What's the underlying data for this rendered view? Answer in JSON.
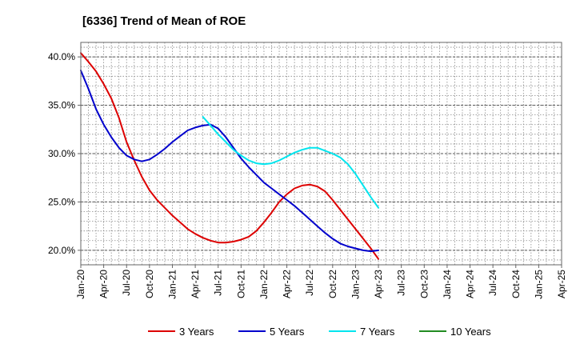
{
  "chart_data": {
    "type": "line",
    "title": "[6336]  Trend of Mean of ROE",
    "xlabel": "",
    "ylabel": "",
    "x_ticks": [
      "Jan-20",
      "Apr-20",
      "Jul-20",
      "Oct-20",
      "Jan-21",
      "Apr-21",
      "Jul-21",
      "Oct-21",
      "Jan-22",
      "Apr-22",
      "Jul-22",
      "Oct-22",
      "Jan-23",
      "Apr-23",
      "Jul-23",
      "Oct-23",
      "Jan-24",
      "Apr-24",
      "Jul-24",
      "Oct-24",
      "Jan-25",
      "Apr-25"
    ],
    "y_ticks": [
      "20.0%",
      "25.0%",
      "30.0%",
      "35.0%",
      "40.0%"
    ],
    "y_tick_values": [
      20,
      25,
      30,
      35,
      40
    ],
    "ylim": [
      18.5,
      41.5
    ],
    "grid": true,
    "legend_position": "bottom",
    "series": [
      {
        "name": "3 Years",
        "color": "#dd0000",
        "values": [
          [
            0,
            40.4
          ],
          [
            1,
            39.5
          ],
          [
            2,
            38.5
          ],
          [
            3,
            37.2
          ],
          [
            4,
            35.7
          ],
          [
            5,
            33.7
          ],
          [
            6,
            31.2
          ],
          [
            7,
            29.3
          ],
          [
            8,
            27.6
          ],
          [
            9,
            26.2
          ],
          [
            10,
            25.2
          ],
          [
            11,
            24.4
          ],
          [
            12,
            23.6
          ],
          [
            13,
            22.9
          ],
          [
            14,
            22.2
          ],
          [
            15,
            21.7
          ],
          [
            16,
            21.3
          ],
          [
            17,
            21.0
          ],
          [
            18,
            20.8
          ],
          [
            19,
            20.8
          ],
          [
            20,
            20.9
          ],
          [
            21,
            21.1
          ],
          [
            22,
            21.4
          ],
          [
            23,
            22.0
          ],
          [
            24,
            22.9
          ],
          [
            25,
            23.9
          ],
          [
            26,
            25.0
          ],
          [
            27,
            25.8
          ],
          [
            28,
            26.4
          ],
          [
            29,
            26.7
          ],
          [
            30,
            26.8
          ],
          [
            31,
            26.6
          ],
          [
            32,
            26.1
          ],
          [
            33,
            25.2
          ],
          [
            34,
            24.2
          ],
          [
            35,
            23.2
          ],
          [
            36,
            22.2
          ],
          [
            37,
            21.2
          ],
          [
            38,
            20.2
          ],
          [
            39,
            19.1
          ]
        ]
      },
      {
        "name": "5 Years",
        "color": "#0000cc",
        "values": [
          [
            0,
            38.6
          ],
          [
            1,
            36.7
          ],
          [
            2,
            34.6
          ],
          [
            3,
            33.0
          ],
          [
            4,
            31.7
          ],
          [
            5,
            30.6
          ],
          [
            6,
            29.8
          ],
          [
            7,
            29.4
          ],
          [
            8,
            29.2
          ],
          [
            9,
            29.4
          ],
          [
            10,
            29.9
          ],
          [
            11,
            30.5
          ],
          [
            12,
            31.2
          ],
          [
            13,
            31.8
          ],
          [
            14,
            32.4
          ],
          [
            15,
            32.7
          ],
          [
            16,
            32.9
          ],
          [
            17,
            33.0
          ],
          [
            18,
            32.6
          ],
          [
            19,
            31.7
          ],
          [
            20,
            30.6
          ],
          [
            21,
            29.5
          ],
          [
            22,
            28.6
          ],
          [
            23,
            27.8
          ],
          [
            24,
            27.0
          ],
          [
            25,
            26.4
          ],
          [
            26,
            25.8
          ],
          [
            27,
            25.2
          ],
          [
            28,
            24.6
          ],
          [
            29,
            23.9
          ],
          [
            30,
            23.2
          ],
          [
            31,
            22.5
          ],
          [
            32,
            21.8
          ],
          [
            33,
            21.2
          ],
          [
            34,
            20.7
          ],
          [
            35,
            20.4
          ],
          [
            36,
            20.2
          ],
          [
            37,
            20.0
          ],
          [
            38,
            19.9
          ],
          [
            39,
            20.0
          ]
        ]
      },
      {
        "name": "7 Years",
        "color": "#00e5ee",
        "values": [
          [
            16,
            33.8
          ],
          [
            17,
            32.9
          ],
          [
            18,
            32.0
          ],
          [
            19,
            31.2
          ],
          [
            20,
            30.4
          ],
          [
            21,
            29.8
          ],
          [
            22,
            29.3
          ],
          [
            23,
            29.0
          ],
          [
            24,
            28.9
          ],
          [
            25,
            29.0
          ],
          [
            26,
            29.3
          ],
          [
            27,
            29.7
          ],
          [
            28,
            30.1
          ],
          [
            29,
            30.4
          ],
          [
            30,
            30.6
          ],
          [
            31,
            30.6
          ],
          [
            32,
            30.3
          ],
          [
            33,
            30.0
          ],
          [
            34,
            29.6
          ],
          [
            35,
            28.9
          ],
          [
            36,
            27.9
          ],
          [
            37,
            26.7
          ],
          [
            38,
            25.5
          ],
          [
            39,
            24.4
          ]
        ]
      },
      {
        "name": "10 Years",
        "color": "#228b22",
        "values": []
      }
    ]
  }
}
